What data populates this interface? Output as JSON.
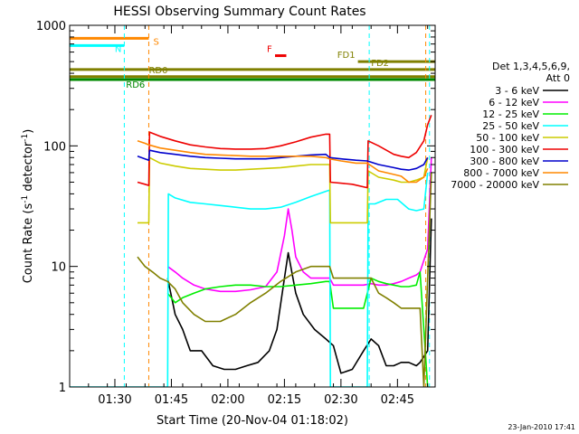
{
  "chart_data": {
    "type": "line",
    "title": "HESSI Observing Summary Count Rates",
    "xlabel": "Start Time (20-Nov-04 01:18:02)",
    "ylabel": "Count Rate (s",
    "ylabel_sup1": "-1",
    "ylabel_mid": " detector",
    "ylabel_sup2": "-1",
    "ylabel_end": ")",
    "ylog": true,
    "ylim": [
      1,
      1000
    ],
    "x_unit": "minutes after 01:18:02",
    "xlim": [
      0,
      97
    ],
    "x_ticks": [
      {
        "x": 12,
        "label": "01:30"
      },
      {
        "x": 27,
        "label": "01:45"
      },
      {
        "x": 42,
        "label": "02:00"
      },
      {
        "x": 57,
        "label": "02:15"
      },
      {
        "x": 72,
        "label": "02:30"
      },
      {
        "x": 87,
        "label": "02:45"
      }
    ],
    "y_ticks": [
      {
        "y": 1,
        "label": "1"
      },
      {
        "y": 10,
        "label": "10"
      },
      {
        "y": 100,
        "label": "100"
      },
      {
        "y": 1000,
        "label": "1000"
      }
    ],
    "legend": {
      "header": [
        "Det 1,3,4,5,6,9,",
        "Att 0"
      ],
      "placement": "right",
      "entries": [
        {
          "label": "3 - 6 keV",
          "color": "#000000"
        },
        {
          "label": "6 - 12 keV",
          "color": "#ff00ff"
        },
        {
          "label": "12 - 25 keV",
          "color": "#00ee00"
        },
        {
          "label": "25 - 50 keV",
          "color": "#00ffff"
        },
        {
          "label": "50 - 100 keV",
          "color": "#cccc00"
        },
        {
          "label": "100 - 300 keV",
          "color": "#ee0000"
        },
        {
          "label": "300 - 800 keV",
          "color": "#0000cc"
        },
        {
          "label": "800 - 7000 keV",
          "color": "#ff8800"
        },
        {
          "label": "7000 - 20000 keV",
          "color": "#808000"
        }
      ]
    },
    "series": [
      {
        "name": "3 - 6 keV",
        "color": "#000000",
        "x": [
          26,
          28,
          30,
          32,
          35,
          38,
          41,
          44,
          47,
          50,
          53,
          55,
          57,
          58,
          60,
          62,
          65,
          68,
          70,
          72,
          75,
          78,
          80,
          82,
          84,
          86,
          88,
          90,
          92,
          93,
          95,
          96
        ],
        "y": [
          8,
          4,
          3,
          2,
          2,
          1.5,
          1.4,
          1.4,
          1.5,
          1.6,
          2,
          3,
          8,
          13,
          6,
          4,
          3,
          2.5,
          2.2,
          1.3,
          1.4,
          2,
          2.5,
          2.2,
          1.5,
          1.5,
          1.6,
          1.6,
          1.5,
          1.6,
          2,
          25
        ]
      },
      {
        "name": "6 - 12 keV",
        "color": "#ff00ff",
        "x": [
          26,
          28,
          30,
          33,
          36,
          40,
          44,
          48,
          52,
          55,
          57,
          58,
          59,
          60,
          62,
          64,
          66,
          68,
          69,
          70,
          72,
          75,
          78,
          80,
          82,
          84,
          86,
          88,
          90,
          92,
          93,
          95,
          96
        ],
        "y": [
          10,
          9,
          8,
          7,
          6.5,
          6.2,
          6.2,
          6.4,
          6.8,
          9,
          18,
          30,
          20,
          12,
          9,
          8,
          8,
          8,
          8,
          7,
          7,
          7,
          7,
          7.2,
          7,
          7,
          7.2,
          7.5,
          8,
          8.5,
          9,
          14,
          80
        ]
      },
      {
        "name": "12 - 25 keV",
        "color": "#00ee00",
        "x": [
          26,
          28,
          30,
          33,
          36,
          40,
          44,
          48,
          52,
          56,
          60,
          64,
          68,
          69,
          70,
          72,
          75,
          78,
          80,
          82,
          84,
          86,
          88,
          90,
          92,
          93,
          95
        ],
        "y": [
          6,
          5,
          5.5,
          6,
          6.5,
          6.8,
          7,
          7,
          6.8,
          6.8,
          7,
          7.2,
          7.5,
          7.5,
          4.5,
          4.5,
          4.5,
          4.5,
          8,
          7.5,
          7.2,
          7,
          6.8,
          6.8,
          7,
          9,
          1
        ]
      },
      {
        "name": "25 - 50 keV",
        "color": "#00ffff",
        "x": [
          0,
          15,
          15.2,
          26,
          26.2,
          28,
          32,
          36,
          40,
          44,
          48,
          52,
          56,
          60,
          64,
          68,
          69,
          69.2,
          79,
          79.2,
          81,
          84,
          87,
          90,
          92,
          94,
          95
        ],
        "y": [
          1,
          1,
          1,
          1,
          40,
          37,
          34,
          33,
          32,
          31,
          30,
          30,
          31,
          34,
          38,
          42,
          43,
          1,
          1,
          33,
          33,
          36,
          36,
          30,
          29,
          30,
          60
        ]
      },
      {
        "name": "50 - 100 keV",
        "color": "#cccc00",
        "x": [
          18,
          20,
          21,
          21.2,
          24,
          28,
          32,
          36,
          40,
          44,
          48,
          52,
          56,
          60,
          64,
          68,
          69,
          69.2,
          75,
          79,
          79.2,
          82,
          86,
          88,
          90,
          92,
          94,
          95
        ],
        "y": [
          23,
          23,
          23,
          80,
          72,
          68,
          65,
          64,
          63,
          63,
          64,
          65,
          66,
          68,
          70,
          70,
          70,
          23,
          23,
          23,
          62,
          55,
          52,
          50,
          50,
          52,
          55,
          80
        ]
      },
      {
        "name": "100 - 300 keV",
        "color": "#ee0000",
        "x": [
          18,
          20,
          21,
          21.2,
          24,
          28,
          32,
          36,
          40,
          44,
          48,
          52,
          56,
          60,
          64,
          68,
          69,
          69.2,
          75,
          79,
          79.2,
          82,
          86,
          88,
          90,
          92,
          94,
          95,
          96
        ],
        "y": [
          50,
          48,
          47,
          130,
          120,
          110,
          102,
          98,
          95,
          94,
          94,
          95,
          100,
          108,
          118,
          125,
          125,
          50,
          48,
          45,
          110,
          100,
          85,
          82,
          80,
          88,
          110,
          150,
          180
        ]
      },
      {
        "name": "300 - 800 keV",
        "color": "#0000cc",
        "x": [
          18,
          20,
          21,
          21.2,
          24,
          28,
          32,
          36,
          40,
          44,
          48,
          52,
          56,
          60,
          64,
          68,
          69,
          72,
          76,
          79,
          82,
          86,
          88,
          90,
          92,
          94,
          95
        ],
        "y": [
          82,
          78,
          76,
          92,
          88,
          85,
          82,
          80,
          79,
          78,
          78,
          78,
          80,
          82,
          84,
          85,
          80,
          78,
          76,
          75,
          70,
          66,
          64,
          63,
          65,
          70,
          80
        ]
      },
      {
        "name": "800 - 7000 keV",
        "color": "#ff8800",
        "x": [
          18,
          20,
          21,
          24,
          28,
          32,
          36,
          40,
          44,
          48,
          52,
          56,
          60,
          64,
          68,
          69,
          72,
          76,
          79,
          82,
          86,
          88,
          90,
          92,
          94,
          95
        ],
        "y": [
          110,
          105,
          102,
          96,
          92,
          88,
          85,
          84,
          83,
          82,
          82,
          82,
          82,
          82,
          80,
          78,
          75,
          72,
          72,
          62,
          58,
          56,
          50,
          50,
          55,
          65
        ]
      },
      {
        "name": "7000 - 20000 keV",
        "color": "#808000",
        "x": [
          18,
          20,
          22,
          24,
          26,
          28,
          30,
          33,
          36,
          40,
          44,
          48,
          52,
          56,
          60,
          64,
          68,
          69,
          70,
          72,
          75,
          78,
          80,
          82,
          84,
          86,
          88,
          90,
          92,
          93,
          94,
          95,
          96
        ],
        "y": [
          12,
          10,
          9,
          8,
          7.5,
          6.5,
          5,
          4,
          3.5,
          3.5,
          4,
          5,
          6,
          7.5,
          9,
          10,
          10,
          10,
          8,
          8,
          8,
          8,
          8,
          6,
          5.5,
          5,
          4.5,
          4.5,
          4.5,
          4.5,
          1,
          8,
          60
        ]
      }
    ],
    "flag_lines": [
      {
        "label": "S",
        "color": "#ff8800",
        "x_start": 0,
        "x_end": 21,
        "y": 780
      },
      {
        "label": "N",
        "color": "#00ffff",
        "x_start": 0,
        "x_end": 14.5,
        "y": 680
      },
      {
        "label": "F",
        "color": "#ee0000",
        "x_start": 54.5,
        "x_end": 57.5,
        "y": 560
      },
      {
        "label": "FD1",
        "color": "#808000",
        "x_start": 76.5,
        "x_end": 97,
        "y": 500
      },
      {
        "label": "FD2",
        "color": "#808000",
        "x_start": 0,
        "x_end": 97,
        "y": 430
      },
      {
        "label": "RD0",
        "color": "#808000",
        "x_start": 0,
        "x_end": 97,
        "y": 375
      },
      {
        "label": "RD6",
        "color": "#008800",
        "x_start": 0,
        "x_end": 97,
        "y": 355
      }
    ],
    "vertical_markers": [
      {
        "x": 14.5,
        "color": "#00ffff"
      },
      {
        "x": 21,
        "color": "#ff8800"
      },
      {
        "x": 79.5,
        "color": "#00ffff"
      },
      {
        "x": 94.5,
        "color": "#ff8800"
      },
      {
        "x": 95.5,
        "color": "#00ffff"
      }
    ]
  },
  "timestamp": "23-Jan-2010 17:41"
}
